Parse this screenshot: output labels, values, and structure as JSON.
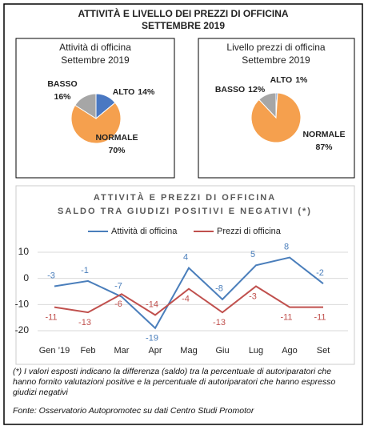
{
  "title": "ATTIVITÀ E LIVELLO DEI PREZZI DI OFFICINA",
  "subtitle": "SETTEMBRE 2019",
  "chart_data": [
    {
      "type": "pie",
      "title": "Attività di officina",
      "subtitle": "Settembre 2019",
      "categories": [
        "ALTO",
        "NORMALE",
        "BASSO"
      ],
      "values": [
        14,
        70,
        16
      ],
      "value_labels": [
        "14%",
        "70%",
        "16%"
      ],
      "colors": [
        "#4a78c2",
        "#f5a04e",
        "#a6a6a6"
      ]
    },
    {
      "type": "pie",
      "title": "Livello prezzi di officina",
      "subtitle": "Settembre 2019",
      "categories": [
        "ALTO",
        "NORMALE",
        "BASSO"
      ],
      "values": [
        1,
        87,
        12
      ],
      "value_labels": [
        "1%",
        "87%",
        "12%"
      ],
      "colors": [
        "#4a78c2",
        "#f5a04e",
        "#a6a6a6"
      ]
    },
    {
      "type": "line",
      "title": "ATTIVITÀ E PREZZI DI OFFICINA",
      "subtitle": "SALDO TRA GIUDIZI POSITIVI E NEGATIVI (*)",
      "categories": [
        "Gen ’19",
        "Feb",
        "Mar",
        "Apr",
        "Mag",
        "Giu",
        "Lug",
        "Ago",
        "Set"
      ],
      "series": [
        {
          "name": "Attività di officina",
          "color": "#4a7ebb",
          "values": [
            -3,
            -1,
            -7,
            -19,
            4,
            -8,
            5,
            8,
            -2
          ]
        },
        {
          "name": "Prezzi di officina",
          "color": "#c0504d",
          "values": [
            -11,
            -13,
            -6,
            -14,
            -4,
            -13,
            -3,
            -11,
            -11
          ]
        }
      ],
      "ylim": [
        -20,
        10
      ],
      "yticks": [
        10,
        0,
        -10,
        -20
      ],
      "grid": true
    }
  ],
  "notes": [
    "(*) I valori esposti indicano la differenza (saldo) tra la percentuale di autoriparatori che hanno fornito valutazioni positive e la percentuale di autoriparatori che hanno espresso giudizi negativi",
    "Fonte: Osservatorio Autopromotec su dati Centro Studi Promotor"
  ]
}
